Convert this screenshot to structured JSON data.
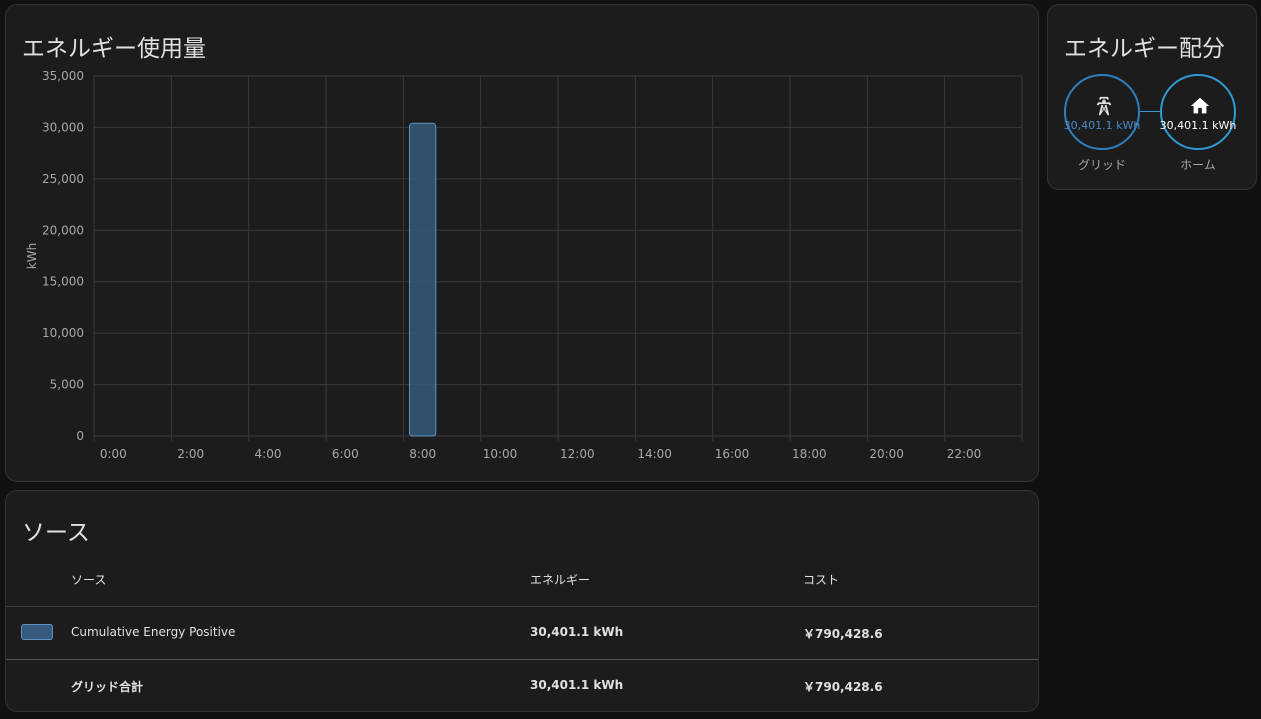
{
  "energy_usage": {
    "title": "エネルギー使用量"
  },
  "chart_data": {
    "type": "bar",
    "title": "エネルギー使用量",
    "ylabel": "kWh",
    "xlabel": "",
    "ylim": [
      0,
      35000
    ],
    "yticks": [
      "0",
      "5,000",
      "10,000",
      "15,000",
      "20,000",
      "25,000",
      "30,000",
      "35,000"
    ],
    "categories": [
      "0:00",
      "1:00",
      "2:00",
      "3:00",
      "4:00",
      "5:00",
      "6:00",
      "7:00",
      "8:00",
      "9:00",
      "10:00",
      "11:00",
      "12:00",
      "13:00",
      "14:00",
      "15:00",
      "16:00",
      "17:00",
      "18:00",
      "19:00",
      "20:00",
      "21:00",
      "22:00",
      "23:00"
    ],
    "xtick_labels": [
      "0:00",
      "2:00",
      "4:00",
      "6:00",
      "8:00",
      "10:00",
      "12:00",
      "14:00",
      "16:00",
      "18:00",
      "20:00",
      "22:00"
    ],
    "series": [
      {
        "name": "Cumulative Energy Positive",
        "color": "#34597a",
        "values": [
          0,
          0,
          0,
          0,
          0,
          0,
          0,
          0,
          30401.1,
          0,
          0,
          0,
          0,
          0,
          0,
          0,
          0,
          0,
          0,
          0,
          0,
          0,
          0,
          0
        ]
      }
    ],
    "grid": true
  },
  "distribution": {
    "title": "エネルギー配分",
    "grid": {
      "value": "30,401.1 kWh",
      "label": "グリッド",
      "icon": "transmission-tower-icon"
    },
    "home": {
      "value": "30,401.1 kWh",
      "label": "ホーム",
      "icon": "home-icon"
    }
  },
  "sources": {
    "title": "ソース",
    "headers": {
      "source": "ソース",
      "energy": "エネルギー",
      "cost": "コスト"
    },
    "rows": [
      {
        "name": "Cumulative Energy Positive",
        "energy": "30,401.1 kWh",
        "cost": "￥790,428.6",
        "color": "#34597a"
      }
    ],
    "total": {
      "label": "グリッド合計",
      "energy": "30,401.1 kWh",
      "cost": "￥790,428.6"
    }
  }
}
